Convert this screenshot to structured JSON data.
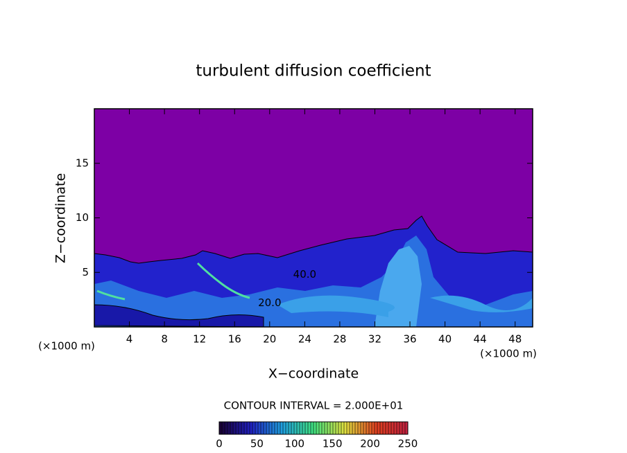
{
  "chart_data": {
    "type": "contour",
    "title": "turbulent diffusion coefficient",
    "x_label": "X−coordinate",
    "y_label": "Z−coordinate",
    "x_unit": "(×1000 m)",
    "y_unit": "(×1000 m)",
    "xlim": [
      0,
      50
    ],
    "xticks": [
      4,
      8,
      12,
      16,
      20,
      24,
      28,
      32,
      36,
      40,
      44,
      48
    ],
    "ylim": [
      0,
      20
    ],
    "yticks": [
      5,
      10,
      15
    ],
    "contour_labels": [
      {
        "value": 40,
        "label": "40.0",
        "x": 24,
        "y": 4.8
      },
      {
        "value": 20,
        "label": "20.0",
        "x": 20,
        "y": 2.2
      }
    ],
    "contour_interval": "CONTOUR INTERVAL = 2.000E+01",
    "colorbar": {
      "lim": [
        0,
        250
      ],
      "ticks": [
        0,
        50,
        100,
        150,
        200,
        250
      ],
      "colors": [
        "#1a0030",
        "#2020c0",
        "#20a0e0",
        "#40e080",
        "#e0e040",
        "#e04020",
        "#c02040"
      ]
    }
  }
}
